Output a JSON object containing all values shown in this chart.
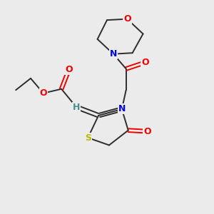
{
  "bg_color": "#ebebeb",
  "atom_colors": {
    "C": "#2d2d2d",
    "H": "#4a9090",
    "N": "#0000ee",
    "O": "#ee0000",
    "S": "#b8b800"
  },
  "bond_color": "#2d2d2d",
  "lw": 1.4,
  "fontsize": 8.5
}
